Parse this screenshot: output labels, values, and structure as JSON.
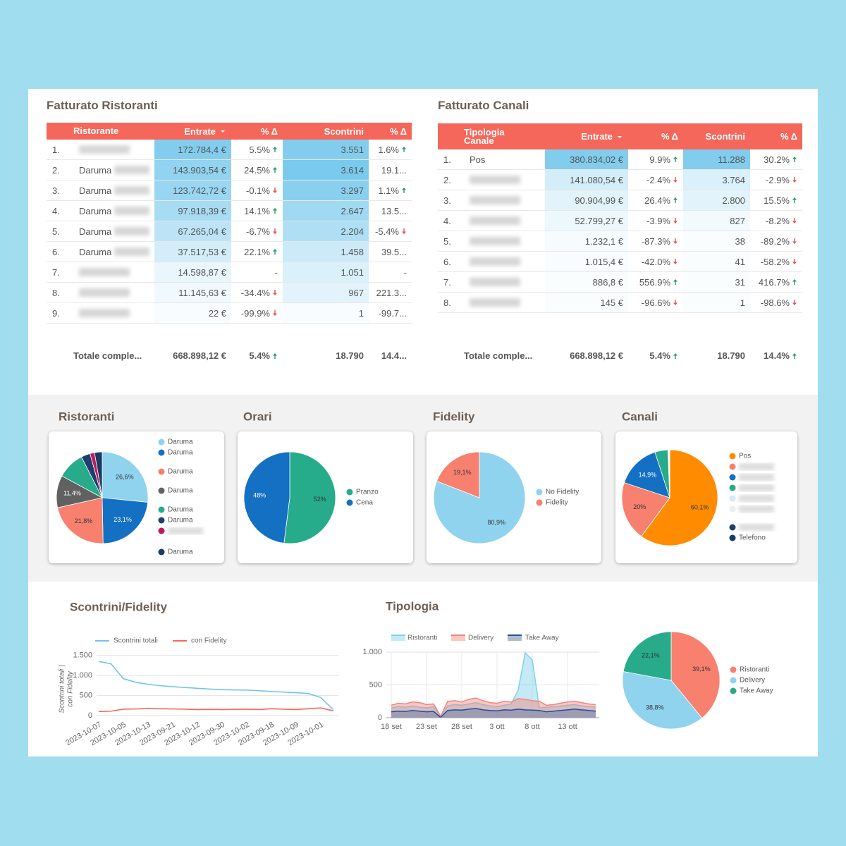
{
  "tables": [
    {
      "title": "Fatturato Ristoranti",
      "columns": [
        "Ristorante",
        "Entrate",
        "% Δ",
        "Scontrini",
        "% Δ"
      ],
      "rows": [
        [
          "1.",
          null,
          "172.784,4 €",
          "5.5%",
          "3.551",
          "1.6%"
        ],
        [
          "2.",
          "Daruma",
          "143.903,54 €",
          "24.5%",
          "3.614",
          "19.1..."
        ],
        [
          "3.",
          "Daruma",
          "123.742,72 €",
          "-0.1%",
          "3.297",
          "1.1%"
        ],
        [
          "4.",
          "Daruma",
          "97.918,39 €",
          "14.1%",
          "2.647",
          "13.5..."
        ],
        [
          "5.",
          "Daruma",
          "67.265,04 €",
          "-6.7%",
          "2.204",
          "-5.4%"
        ],
        [
          "6.",
          "Daruma",
          "37.517,53 €",
          "22.1%",
          "1.458",
          "39.5..."
        ],
        [
          "7.",
          null,
          "14.598,87 €",
          "-",
          "1.051",
          "-"
        ],
        [
          "8.",
          null,
          "11.145,63 €",
          "-34.4%",
          "967",
          "221.3..."
        ],
        [
          "9.",
          null,
          "22 €",
          "-99.9%",
          "1",
          "-99.7..."
        ]
      ],
      "total": [
        "Totale comple...",
        "668.898,12 €",
        "5.4%",
        "18.790",
        "14.4..."
      ]
    },
    {
      "title": "Fatturato Canali",
      "columns": [
        "Tipologia Canale",
        "Entrate",
        "% Δ",
        "Scontrini",
        "% Δ"
      ],
      "rows": [
        [
          "1.",
          "Pos",
          "380.834,02 €",
          "9.9%",
          "11.288",
          "30.2%"
        ],
        [
          "2.",
          null,
          "141.080,54 €",
          "-2.4%",
          "3.764",
          "-2.9%"
        ],
        [
          "3.",
          null,
          "90.904,99 €",
          "26.4%",
          "2.800",
          "15.5%"
        ],
        [
          "4.",
          null,
          "52.799,27 €",
          "-3.9%",
          "827",
          "-8.2%"
        ],
        [
          "5.",
          null,
          "1.232,1 €",
          "-87.3%",
          "38",
          "-89.2%"
        ],
        [
          "6.",
          null,
          "1.015,4 €",
          "-42.0%",
          "41",
          "-58.2%"
        ],
        [
          "7.",
          null,
          "886,8 €",
          "556.9%",
          "31",
          "416.7%"
        ],
        [
          "8.",
          null,
          "145 €",
          "-96.6%",
          "1",
          "-98.6%"
        ]
      ],
      "total": [
        "Totale comple...",
        "668.898,12 €",
        "5.4%",
        "18.790",
        "14.4%"
      ]
    }
  ],
  "chart_data": [
    {
      "type": "pie",
      "title": "Ristoranti",
      "categories": [
        "Daruma",
        "Daruma",
        "Daruma",
        "Daruma",
        "Daruma",
        "Daruma",
        null,
        "Daruma"
      ],
      "values": [
        26.6,
        23.1,
        21.8,
        11.4,
        9.6,
        3.2,
        1.6,
        2.7
      ],
      "value_labels": [
        "26,6%",
        "23,1%",
        "21,8%",
        "11,4%",
        null,
        null,
        null,
        null
      ],
      "colors": [
        "#8fd3ef",
        "#1470c2",
        "#f7806f",
        "#616161",
        "#27ab8b",
        "#1d3f6e",
        "#c2185b",
        "#173b63"
      ]
    },
    {
      "type": "pie",
      "title": "Orari",
      "categories": [
        "Pranzo",
        "Cena"
      ],
      "values": [
        52,
        48
      ],
      "value_labels": [
        "52%",
        "48%"
      ],
      "colors": [
        "#26ab8b",
        "#1470c2"
      ]
    },
    {
      "type": "pie",
      "title": "Fidelity",
      "categories": [
        "No Fidelity",
        "Fidelity"
      ],
      "values": [
        80.9,
        19.1
      ],
      "value_labels": [
        "80,9%",
        "19,1%"
      ],
      "colors": [
        "#8fd3ef",
        "#f7806f"
      ]
    },
    {
      "type": "pie",
      "title": "Canali",
      "categories": [
        "Pos",
        null,
        null,
        null,
        null,
        null,
        null,
        "Telefono"
      ],
      "values": [
        60.1,
        20,
        14.9,
        4.4,
        0.2,
        0.2,
        0.2,
        0
      ],
      "value_labels": [
        "60,1%",
        "20%",
        "14,9%",
        null,
        null,
        null,
        null,
        null
      ],
      "colors": [
        "#ff8c00",
        "#f7806f",
        "#1470c2",
        "#27ab8b",
        "#d3ecf8",
        "#eeeeee",
        "#1d3f6e",
        "#173b63"
      ]
    },
    {
      "type": "line",
      "title": "Scontrini/Fidelity",
      "ylabel": [
        "Scontrini totali |",
        "con Fidelity"
      ],
      "categories": [
        "2023-10-07",
        null,
        "2023-10-05",
        null,
        "2023-10-13",
        null,
        "2023-09-21",
        null,
        "2023-10-12",
        null,
        "2023-09-30",
        null,
        "2023-10-02",
        null,
        "2023-09-18",
        null,
        "2023-10-09",
        null,
        "2023-10-01",
        null
      ],
      "series": [
        {
          "name": "Scontrini totali",
          "color": "#6ec6e6",
          "values": [
            1350,
            1290,
            920,
            830,
            780,
            745,
            720,
            700,
            680,
            660,
            645,
            640,
            635,
            620,
            600,
            585,
            570,
            550,
            450,
            150
          ]
        },
        {
          "name": "con Fidelity",
          "color": "#f4685a",
          "values": [
            100,
            110,
            160,
            165,
            175,
            170,
            165,
            160,
            150,
            155,
            150,
            155,
            160,
            150,
            170,
            160,
            150,
            170,
            190,
            120
          ]
        }
      ],
      "ylim": [
        0,
        1600
      ],
      "yticks": [
        0,
        500,
        {
          "value": 1000,
          "label": "1.000"
        },
        {
          "value": 1500,
          "label": "1.500"
        }
      ],
      "grid": true
    },
    {
      "type": "area",
      "title": "Tipologia",
      "categories": [
        "18 set",
        null,
        null,
        null,
        null,
        "23 set",
        null,
        null,
        null,
        null,
        "28 set",
        null,
        null,
        null,
        null,
        "3 ott",
        null,
        null,
        null,
        null,
        "8 ott",
        null,
        null,
        null,
        null,
        "13 ott",
        null,
        null,
        null,
        null
      ],
      "series": [
        {
          "name": "Ristoranti",
          "color": "#7fd0ec",
          "values": [
            150,
            170,
            160,
            180,
            160,
            150,
            170,
            10,
            180,
            200,
            190,
            210,
            230,
            200,
            180,
            170,
            190,
            210,
            420,
            990,
            880,
            150,
            160,
            170,
            180,
            190,
            200,
            180,
            170,
            160
          ]
        },
        {
          "name": "Delivery",
          "color": "#f4847a",
          "values": [
            190,
            220,
            210,
            240,
            230,
            200,
            210,
            20,
            250,
            260,
            240,
            280,
            300,
            260,
            230,
            220,
            250,
            240,
            290,
            280,
            260,
            250,
            190,
            200,
            220,
            240,
            250,
            230,
            210,
            200
          ]
        },
        {
          "name": "Take Away",
          "color": "#1f4fa0",
          "values": [
            90,
            100,
            95,
            110,
            100,
            90,
            95,
            5,
            110,
            120,
            115,
            130,
            140,
            120,
            110,
            105,
            120,
            115,
            130,
            120,
            115,
            110,
            90,
            100,
            110,
            120,
            130,
            120,
            110,
            100
          ]
        }
      ],
      "ylim": [
        0,
        1000
      ],
      "yticks": [
        0,
        500,
        {
          "value": 1000,
          "label": "1.000"
        }
      ],
      "grid": true
    },
    {
      "type": "pie",
      "categories": [
        "Ristoranti",
        "Delivery",
        "Take Away"
      ],
      "values": [
        39.1,
        38.8,
        22.1
      ],
      "value_labels": [
        "39,1%",
        "38,8%",
        "22,1%"
      ],
      "colors": [
        "#f7806f",
        "#8fd3ef",
        "#27ab8b"
      ]
    }
  ]
}
